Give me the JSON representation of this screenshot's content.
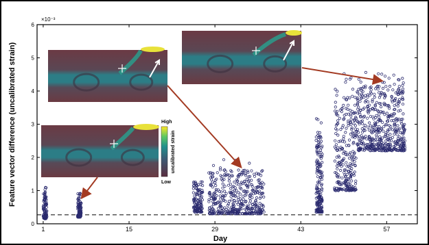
{
  "chart_data": {
    "type": "scatter",
    "xlabel": "Day",
    "ylabel": "Feature vector difference (uncalibrated strain)",
    "y_multiplier_label": "×10⁻³",
    "xlim": [
      0,
      62
    ],
    "ylim": [
      0,
      6
    ],
    "xticks": [
      1,
      15,
      29,
      43,
      57
    ],
    "yticks": [
      0,
      1,
      2,
      3,
      4,
      5,
      6
    ],
    "threshold_y": 0.27,
    "marker_color": "#2a2a6e",
    "arrow_color": "#a33a22",
    "clusters": [
      {
        "x": [
          1.0,
          1.6
        ],
        "y": [
          0.15,
          1.15
        ],
        "n": 90
      },
      {
        "x": [
          6.6,
          7.2
        ],
        "y": [
          0.2,
          0.95
        ],
        "n": 90
      },
      {
        "x": [
          25.5,
          27.0
        ],
        "y": [
          0.35,
          1.5
        ],
        "n": 110
      },
      {
        "x": [
          28.0,
          37.0
        ],
        "y": [
          0.3,
          1.95
        ],
        "n": 420
      },
      {
        "x": [
          45.5,
          46.5
        ],
        "y": [
          0.35,
          3.35
        ],
        "n": 180
      },
      {
        "x": [
          48.5,
          52.0
        ],
        "y": [
          1.0,
          4.6
        ],
        "n": 260
      },
      {
        "x": [
          52.0,
          60.0
        ],
        "y": [
          2.2,
          4.65
        ],
        "n": 520
      }
    ],
    "colorbar": {
      "high": "High",
      "low": "Low",
      "label": "uncalibrated strain"
    }
  }
}
